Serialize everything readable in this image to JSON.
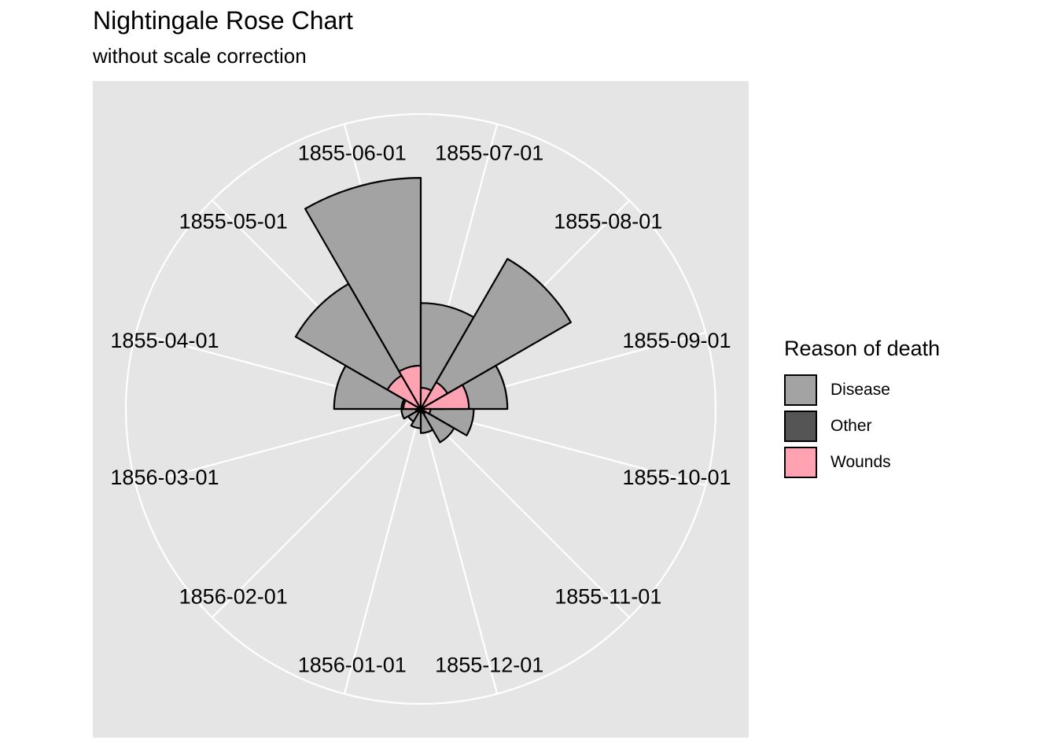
{
  "chart_data": {
    "type": "polar-bar",
    "title": "Nightingale Rose Chart",
    "subtitle": "without scale correction",
    "legend_title": "Reason of death",
    "legend_position": "right",
    "grid": true,
    "scale": "linear",
    "categories": [
      "1855-06-01",
      "1855-07-01",
      "1855-08-01",
      "1855-09-01",
      "1855-10-01",
      "1855-11-01",
      "1855-12-01",
      "1856-01-01",
      "1856-02-01",
      "1856-03-01",
      "1855-04-01",
      "1855-05-01"
    ],
    "series": [
      {
        "name": "Wounds",
        "color": "#ffa3b3",
        "values": [
          45,
          22,
          32,
          50,
          10,
          4,
          3,
          2,
          1,
          1,
          18,
          40
        ]
      },
      {
        "name": "Other",
        "color": "#555555",
        "values": [
          18,
          22,
          8,
          24,
          10,
          6,
          4,
          3,
          4,
          5,
          20,
          18
        ]
      },
      {
        "name": "Disease",
        "color": "#a3a3a3",
        "values": [
          240,
          110,
          180,
          90,
          55,
          40,
          25,
          20,
          15,
          20,
          90,
          150
        ]
      }
    ],
    "stacking": "overlapping",
    "rlim": [
      0,
      245
    ]
  }
}
